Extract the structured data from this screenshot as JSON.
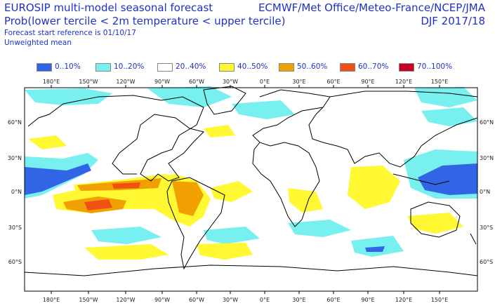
{
  "header": {
    "title": "EUROSIP multi-model seasonal forecast",
    "subtitle": "Prob(lower tercile < 2m temperature < upper tercile)",
    "start_reference": "Forecast start reference is 01/10/17",
    "weighting": "Unweighted mean",
    "centres": "ECMWF/Met Office/Meteo-France/NCEP/JMA",
    "season": "DJF 2017/18"
  },
  "legend": [
    {
      "label": "0..10%",
      "color": "#3264e6"
    },
    {
      "label": "10..20%",
      "color": "#78f0f0"
    },
    {
      "label": "20..40%",
      "color": "#ffffff"
    },
    {
      "label": "40..50%",
      "color": "#fff832"
    },
    {
      "label": "50..60%",
      "color": "#f0a000"
    },
    {
      "label": "60..70%",
      "color": "#f05014"
    },
    {
      "label": "70..100%",
      "color": "#c80028"
    }
  ],
  "axes": {
    "lon_ticks": [
      "180°E",
      "150°W",
      "120°W",
      "90°W",
      "60°W",
      "30°W",
      "0°E",
      "30°E",
      "60°E",
      "90°E",
      "120°E",
      "150°E"
    ],
    "lat_ticks": [
      "60°N",
      "30°N",
      "0°N",
      "30°S",
      "60°S"
    ]
  }
}
